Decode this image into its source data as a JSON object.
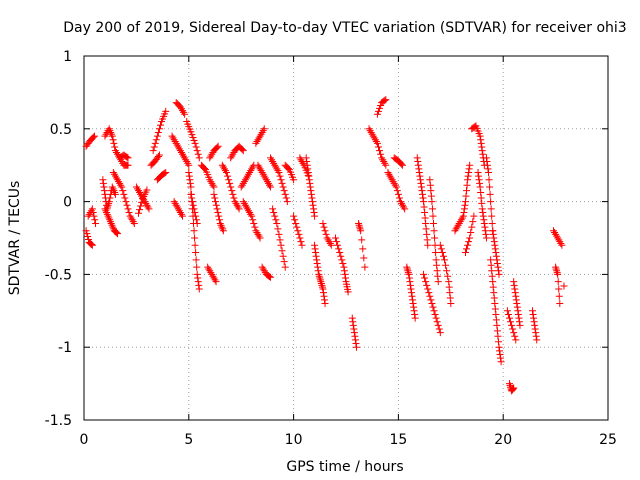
{
  "chart_data": {
    "type": "scatter",
    "title": "Day 200 of 2019, Sidereal Day-to-day VTEC variation (SDTVAR) for receiver ohi3",
    "xlabel": "GPS time / hours",
    "ylabel": "SDTVAR / TECUs",
    "xlim": [
      0,
      25
    ],
    "ylim": [
      -1.5,
      1
    ],
    "xticks": [
      0,
      5,
      10,
      15,
      20,
      25
    ],
    "yticks": [
      -1.5,
      -1,
      -0.5,
      0,
      0.5,
      1
    ],
    "xtick_labels": [
      "0",
      "5",
      "10",
      "15",
      "20",
      "25"
    ],
    "ytick_labels": [
      "-1.5",
      "-1",
      "-0.5",
      "0",
      "0.5",
      "1"
    ],
    "grid": true,
    "marker": "plus",
    "color": "#ff0000",
    "series": [
      {
        "name": "SDTVAR",
        "tracks": [
          [
            [
              0.1,
              0.38
            ],
            [
              0.3,
              0.42
            ],
            [
              0.5,
              0.45
            ]
          ],
          [
            [
              0.1,
              -0.2
            ],
            [
              0.25,
              -0.28
            ],
            [
              0.4,
              -0.3
            ]
          ],
          [
            [
              0.2,
              -0.1
            ],
            [
              0.4,
              -0.05
            ],
            [
              0.55,
              -0.15
            ]
          ],
          [
            [
              0.9,
              0.15
            ],
            [
              1.0,
              0.05
            ],
            [
              1.1,
              -0.05
            ],
            [
              1.2,
              0.0
            ],
            [
              1.35,
              0.1
            ],
            [
              1.5,
              0.05
            ]
          ],
          [
            [
              1.0,
              -0.05
            ],
            [
              1.15,
              -0.1
            ],
            [
              1.3,
              -0.15
            ],
            [
              1.45,
              -0.2
            ],
            [
              1.6,
              -0.22
            ]
          ],
          [
            [
              1.0,
              0.45
            ],
            [
              1.2,
              0.5
            ],
            [
              1.35,
              0.45
            ],
            [
              1.5,
              0.35
            ],
            [
              1.7,
              0.3
            ],
            [
              1.9,
              0.25
            ],
            [
              2.1,
              0.25
            ]
          ],
          [
            [
              1.4,
              0.2
            ],
            [
              1.6,
              0.15
            ],
            [
              1.8,
              0.1
            ],
            [
              2.0,
              0.0
            ],
            [
              2.2,
              -0.1
            ],
            [
              2.4,
              -0.15
            ]
          ],
          [
            [
              1.7,
              0.3
            ],
            [
              1.9,
              0.32
            ],
            [
              2.1,
              0.3
            ]
          ],
          [
            [
              2.5,
              0.1
            ],
            [
              2.7,
              0.05
            ],
            [
              2.9,
              0.0
            ],
            [
              3.1,
              -0.05
            ]
          ],
          [
            [
              2.6,
              -0.08
            ],
            [
              2.8,
              0.02
            ],
            [
              3.0,
              0.08
            ]
          ],
          [
            [
              3.3,
              0.35
            ],
            [
              3.5,
              0.45
            ],
            [
              3.7,
              0.55
            ],
            [
              3.9,
              0.62
            ]
          ],
          [
            [
              3.5,
              0.15
            ],
            [
              3.7,
              0.18
            ],
            [
              3.9,
              0.2
            ]
          ],
          [
            [
              3.2,
              0.25
            ],
            [
              3.4,
              0.28
            ],
            [
              3.6,
              0.32
            ]
          ],
          [
            [
              4.4,
              0.68
            ],
            [
              4.6,
              0.65
            ],
            [
              4.8,
              0.6
            ]
          ],
          [
            [
              4.2,
              0.45
            ],
            [
              4.4,
              0.4
            ],
            [
              4.6,
              0.35
            ],
            [
              4.8,
              0.3
            ],
            [
              5.0,
              0.25
            ]
          ],
          [
            [
              4.3,
              0.0
            ],
            [
              4.5,
              -0.05
            ],
            [
              4.7,
              -0.1
            ]
          ],
          [
            [
              4.9,
              0.55
            ],
            [
              5.1,
              0.48
            ],
            [
              5.3,
              0.4
            ],
            [
              5.5,
              0.3
            ]
          ],
          [
            [
              5.0,
              0.2
            ],
            [
              5.1,
              0.1
            ],
            [
              5.2,
              -0.1
            ],
            [
              5.3,
              -0.3
            ],
            [
              5.4,
              -0.5
            ],
            [
              5.5,
              -0.6
            ]
          ],
          [
            [
              5.1,
              0.05
            ],
            [
              5.25,
              -0.05
            ],
            [
              5.4,
              -0.15
            ]
          ],
          [
            [
              5.6,
              0.25
            ],
            [
              5.8,
              0.22
            ],
            [
              6.0,
              0.15
            ],
            [
              6.2,
              0.1
            ]
          ],
          [
            [
              5.9,
              -0.45
            ],
            [
              6.1,
              -0.5
            ],
            [
              6.3,
              -0.55
            ]
          ],
          [
            [
              6.0,
              0.3
            ],
            [
              6.2,
              0.35
            ],
            [
              6.4,
              0.38
            ]
          ],
          [
            [
              6.2,
              0.05
            ],
            [
              6.35,
              -0.05
            ],
            [
              6.5,
              -0.15
            ],
            [
              6.65,
              -0.2
            ]
          ],
          [
            [
              6.6,
              0.25
            ],
            [
              6.8,
              0.2
            ],
            [
              7.0,
              0.1
            ],
            [
              7.2,
              0.0
            ],
            [
              7.4,
              -0.05
            ]
          ],
          [
            [
              7.0,
              0.3
            ],
            [
              7.2,
              0.35
            ],
            [
              7.4,
              0.38
            ],
            [
              7.6,
              0.35
            ]
          ],
          [
            [
              7.5,
              0.1
            ],
            [
              7.7,
              0.15
            ],
            [
              7.9,
              0.2
            ],
            [
              8.1,
              0.25
            ]
          ],
          [
            [
              7.6,
              0.0
            ],
            [
              7.8,
              -0.05
            ],
            [
              8.0,
              -0.1
            ],
            [
              8.2,
              -0.2
            ],
            [
              8.4,
              -0.25
            ]
          ],
          [
            [
              8.2,
              0.4
            ],
            [
              8.4,
              0.45
            ],
            [
              8.6,
              0.5
            ]
          ],
          [
            [
              8.3,
              0.25
            ],
            [
              8.5,
              0.2
            ],
            [
              8.7,
              0.15
            ],
            [
              8.9,
              0.1
            ]
          ],
          [
            [
              8.5,
              -0.45
            ],
            [
              8.7,
              -0.5
            ],
            [
              8.9,
              -0.52
            ]
          ],
          [
            [
              8.9,
              0.3
            ],
            [
              9.1,
              0.25
            ],
            [
              9.3,
              0.2
            ],
            [
              9.5,
              0.1
            ],
            [
              9.7,
              0.0
            ]
          ],
          [
            [
              9.0,
              -0.05
            ],
            [
              9.2,
              -0.15
            ],
            [
              9.4,
              -0.3
            ],
            [
              9.6,
              -0.45
            ]
          ],
          [
            [
              9.6,
              0.25
            ],
            [
              9.8,
              0.22
            ],
            [
              10.0,
              0.15
            ]
          ],
          [
            [
              10.0,
              -0.1
            ],
            [
              10.2,
              -0.2
            ],
            [
              10.4,
              -0.3
            ]
          ],
          [
            [
              10.6,
              0.3
            ],
            [
              10.7,
              0.2
            ],
            [
              10.8,
              0.1
            ],
            [
              10.9,
              0.0
            ],
            [
              11.0,
              -0.1
            ]
          ],
          [
            [
              10.3,
              0.3
            ],
            [
              10.5,
              0.25
            ],
            [
              10.7,
              0.18
            ]
          ],
          [
            [
              11.0,
              -0.3
            ],
            [
              11.1,
              -0.4
            ],
            [
              11.2,
              -0.5
            ],
            [
              11.3,
              -0.55
            ],
            [
              11.4,
              -0.6
            ],
            [
              11.5,
              -0.7
            ]
          ],
          [
            [
              11.4,
              -0.15
            ],
            [
              11.6,
              -0.25
            ],
            [
              11.8,
              -0.3
            ]
          ],
          [
            [
              12.0,
              -0.25
            ],
            [
              12.2,
              -0.35
            ],
            [
              12.4,
              -0.45
            ],
            [
              12.5,
              -0.55
            ],
            [
              12.6,
              -0.62
            ]
          ],
          [
            [
              12.8,
              -0.8
            ],
            [
              12.9,
              -0.9
            ],
            [
              13.0,
              -1.0
            ]
          ],
          [
            [
              13.1,
              -0.15
            ],
            [
              13.2,
              -0.2
            ],
            [
              13.4,
              -0.45
            ]
          ],
          [
            [
              13.6,
              0.5
            ],
            [
              13.8,
              0.45
            ],
            [
              14.0,
              0.4
            ],
            [
              14.2,
              0.3
            ],
            [
              14.4,
              0.25
            ]
          ],
          [
            [
              14.0,
              0.6
            ],
            [
              14.2,
              0.68
            ],
            [
              14.4,
              0.7
            ]
          ],
          [
            [
              14.5,
              0.2
            ],
            [
              14.7,
              0.15
            ],
            [
              14.9,
              0.1
            ],
            [
              15.1,
              0.0
            ],
            [
              15.3,
              -0.05
            ]
          ],
          [
            [
              14.8,
              0.3
            ],
            [
              15.0,
              0.28
            ],
            [
              15.2,
              0.25
            ]
          ],
          [
            [
              15.4,
              -0.45
            ],
            [
              15.5,
              -0.5
            ],
            [
              15.6,
              -0.6
            ],
            [
              15.7,
              -0.7
            ],
            [
              15.8,
              -0.8
            ]
          ],
          [
            [
              15.9,
              0.3
            ],
            [
              16.0,
              0.2
            ],
            [
              16.1,
              0.1
            ],
            [
              16.2,
              0.0
            ],
            [
              16.3,
              -0.15
            ],
            [
              16.4,
              -0.3
            ]
          ],
          [
            [
              16.2,
              -0.5
            ],
            [
              16.4,
              -0.6
            ],
            [
              16.6,
              -0.7
            ],
            [
              16.8,
              -0.8
            ],
            [
              17.0,
              -0.9
            ]
          ],
          [
            [
              16.5,
              0.15
            ],
            [
              16.6,
              0.0
            ],
            [
              16.7,
              -0.2
            ],
            [
              16.8,
              -0.4
            ],
            [
              16.9,
              -0.55
            ]
          ],
          [
            [
              17.0,
              -0.3
            ],
            [
              17.2,
              -0.4
            ],
            [
              17.4,
              -0.55
            ],
            [
              17.5,
              -0.7
            ]
          ],
          [
            [
              17.7,
              -0.2
            ],
            [
              17.9,
              -0.15
            ],
            [
              18.1,
              -0.1
            ],
            [
              18.2,
              0.0
            ],
            [
              18.3,
              0.15
            ],
            [
              18.4,
              0.25
            ]
          ],
          [
            [
              18.2,
              -0.35
            ],
            [
              18.4,
              -0.25
            ],
            [
              18.6,
              -0.1
            ]
          ],
          [
            [
              18.5,
              0.5
            ],
            [
              18.7,
              0.52
            ],
            [
              18.9,
              0.45
            ],
            [
              19.0,
              0.35
            ],
            [
              19.1,
              0.25
            ]
          ],
          [
            [
              18.8,
              0.2
            ],
            [
              18.9,
              0.1
            ],
            [
              19.0,
              -0.05
            ],
            [
              19.1,
              -0.15
            ],
            [
              19.2,
              -0.25
            ]
          ],
          [
            [
              19.2,
              0.3
            ],
            [
              19.3,
              0.2
            ],
            [
              19.4,
              0.0
            ],
            [
              19.5,
              -0.2
            ]
          ],
          [
            [
              19.4,
              -0.4
            ],
            [
              19.5,
              -0.55
            ],
            [
              19.6,
              -0.7
            ],
            [
              19.7,
              -0.85
            ],
            [
              19.8,
              -1.0
            ],
            [
              19.9,
              -1.1
            ]
          ],
          [
            [
              19.5,
              -0.2
            ],
            [
              19.6,
              -0.3
            ],
            [
              19.7,
              -0.4
            ],
            [
              19.8,
              -0.5
            ]
          ],
          [
            [
              20.2,
              -0.75
            ],
            [
              20.4,
              -0.85
            ],
            [
              20.6,
              -0.95
            ]
          ],
          [
            [
              20.3,
              -1.25
            ],
            [
              20.4,
              -1.3
            ],
            [
              20.5,
              -1.28
            ]
          ],
          [
            [
              20.5,
              -0.55
            ],
            [
              20.6,
              -0.65
            ],
            [
              20.7,
              -0.75
            ],
            [
              20.8,
              -0.85
            ]
          ],
          [
            [
              21.4,
              -0.75
            ],
            [
              21.5,
              -0.85
            ],
            [
              21.6,
              -0.95
            ]
          ],
          [
            [
              22.4,
              -0.2
            ],
            [
              22.6,
              -0.25
            ],
            [
              22.8,
              -0.3
            ]
          ],
          [
            [
              22.5,
              -0.45
            ],
            [
              22.6,
              -0.5
            ],
            [
              22.7,
              -0.7
            ]
          ],
          [
            [
              22.9,
              -0.58
            ]
          ]
        ]
      }
    ]
  }
}
